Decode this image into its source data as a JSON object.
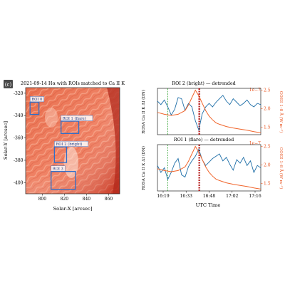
{
  "panel_label": "(c)",
  "colors": {
    "ca_line": "#1f6fa8",
    "goes_line": "#f0642a",
    "goes_axis": "#e8531f",
    "roi_box": "#2e6ec9",
    "marker_green": "#2ca02c",
    "marker_red": "#d62728",
    "marker_darkred": "#8b0000"
  },
  "chart_data": [
    {
      "type": "heatmap",
      "title": "2021-09-14  Hα with ROIs matched to Ca II K",
      "xlabel": "Solar-X [arcsec]",
      "ylabel": "Solar-Y [arcsec]",
      "xlim": [
        785,
        870
      ],
      "ylim": [
        -410,
        -315
      ],
      "xticks": [
        800,
        820,
        840,
        860
      ],
      "yticks": [
        -320,
        -340,
        -360,
        -380,
        -400
      ],
      "colormap": "reds",
      "rois": [
        {
          "label": "ROI 0",
          "x": [
            789,
            797
          ],
          "y": [
            -339,
            -328
          ]
        },
        {
          "label": "ROI 1 (flare)",
          "x": [
            817,
            833
          ],
          "y": [
            -356,
            -345
          ]
        },
        {
          "label": "ROI 2 (bright)",
          "x": [
            811,
            822
          ],
          "y": [
            -382,
            -368
          ]
        },
        {
          "label": "ROI 3",
          "x": [
            808,
            830
          ],
          "y": [
            -406,
            -390
          ]
        }
      ]
    },
    {
      "type": "line",
      "title": "ROI 2 (bright) — detrended",
      "xlabel": "",
      "ylabel": "ROSA Ca II K ΔI (DN)",
      "y2label": "GOES 1–8 Å (W m⁻²)",
      "y2_multiplier": "1e−7",
      "xlim": [
        0,
        60
      ],
      "ylim": [
        -1,
        1
      ],
      "y2lim": [
        1.3,
        2.55
      ],
      "y2ticks": [
        1.5,
        2.0,
        2.5
      ],
      "series": [
        {
          "name": "",
          "axis": "left",
          "x": [
            0,
            2,
            4,
            6,
            8,
            10,
            12,
            14,
            16,
            18,
            20,
            22,
            24,
            26,
            28,
            30,
            32,
            34,
            36,
            38,
            40,
            42,
            44,
            46,
            48,
            50,
            52,
            54,
            56,
            58,
            60
          ],
          "values": [
            0.45,
            0.3,
            0.5,
            0.2,
            -0.15,
            0.1,
            0.6,
            0.55,
            0.05,
            0.35,
            0.2,
            -0.4,
            -0.8,
            -0.1,
            0.2,
            0.35,
            0.2,
            0.4,
            0.55,
            0.7,
            0.45,
            0.3,
            0.55,
            0.4,
            0.25,
            0.35,
            0.5,
            0.3,
            0.2,
            0.35,
            0.3
          ]
        },
        {
          "name": "",
          "axis": "right",
          "x": [
            0,
            4,
            8,
            12,
            16,
            18,
            20,
            22,
            24,
            26,
            28,
            30,
            32,
            34,
            36,
            38,
            40,
            44,
            48,
            52,
            56,
            60
          ],
          "values": [
            1.9,
            1.85,
            1.82,
            1.85,
            1.95,
            2.1,
            2.3,
            2.5,
            2.35,
            2.15,
            1.95,
            1.8,
            1.7,
            1.62,
            1.58,
            1.55,
            1.52,
            1.48,
            1.45,
            1.42,
            1.38,
            1.35
          ]
        }
      ],
      "markers": [
        {
          "x": 6,
          "color": "green"
        },
        {
          "x": 24,
          "color": "red"
        },
        {
          "x": 24.6,
          "color": "darkred"
        }
      ]
    },
    {
      "type": "line",
      "title": "ROI 1 (flare) — detrended",
      "xlabel": "UTC Time",
      "ylabel": "ROSA Ca II K ΔI (DN)",
      "y2label": "GOES 1–8 Å (W m⁻²)",
      "y2_multiplier": "1e−7",
      "xlim": [
        0,
        60
      ],
      "ylim": [
        -1,
        1
      ],
      "y2lim": [
        1.3,
        2.55
      ],
      "y2ticks": [
        1.5,
        2.0,
        2.5
      ],
      "xticks": [
        "16:19",
        "16:33",
        "16:48",
        "17:02",
        "17:16"
      ],
      "series": [
        {
          "name": "",
          "axis": "left",
          "x": [
            0,
            2,
            4,
            6,
            8,
            10,
            12,
            14,
            16,
            18,
            20,
            22,
            24,
            26,
            28,
            30,
            32,
            34,
            36,
            38,
            40,
            42,
            44,
            46,
            48,
            50,
            52,
            54,
            56,
            58,
            60
          ],
          "values": [
            0.1,
            -0.2,
            0.0,
            -0.5,
            -0.2,
            0.2,
            0.4,
            -0.3,
            -0.4,
            0.05,
            0.3,
            0.5,
            0.8,
            0.35,
            0.1,
            0.25,
            0.4,
            0.5,
            0.6,
            0.3,
            0.45,
            0.15,
            -0.1,
            0.35,
            0.2,
            0.45,
            0.1,
            0.3,
            -0.2,
            0.1,
            0.0
          ]
        },
        {
          "name": "",
          "axis": "right",
          "x": [
            0,
            4,
            8,
            12,
            16,
            18,
            20,
            22,
            24,
            26,
            28,
            30,
            32,
            34,
            36,
            38,
            40,
            44,
            48,
            52,
            56,
            60
          ],
          "values": [
            1.9,
            1.85,
            1.82,
            1.85,
            1.95,
            2.1,
            2.3,
            2.5,
            2.35,
            2.15,
            1.95,
            1.8,
            1.7,
            1.62,
            1.58,
            1.55,
            1.52,
            1.48,
            1.45,
            1.42,
            1.38,
            1.35
          ]
        }
      ],
      "markers": [
        {
          "x": 6,
          "color": "green"
        },
        {
          "x": 24,
          "color": "red"
        },
        {
          "x": 24.6,
          "color": "darkred"
        }
      ]
    }
  ]
}
